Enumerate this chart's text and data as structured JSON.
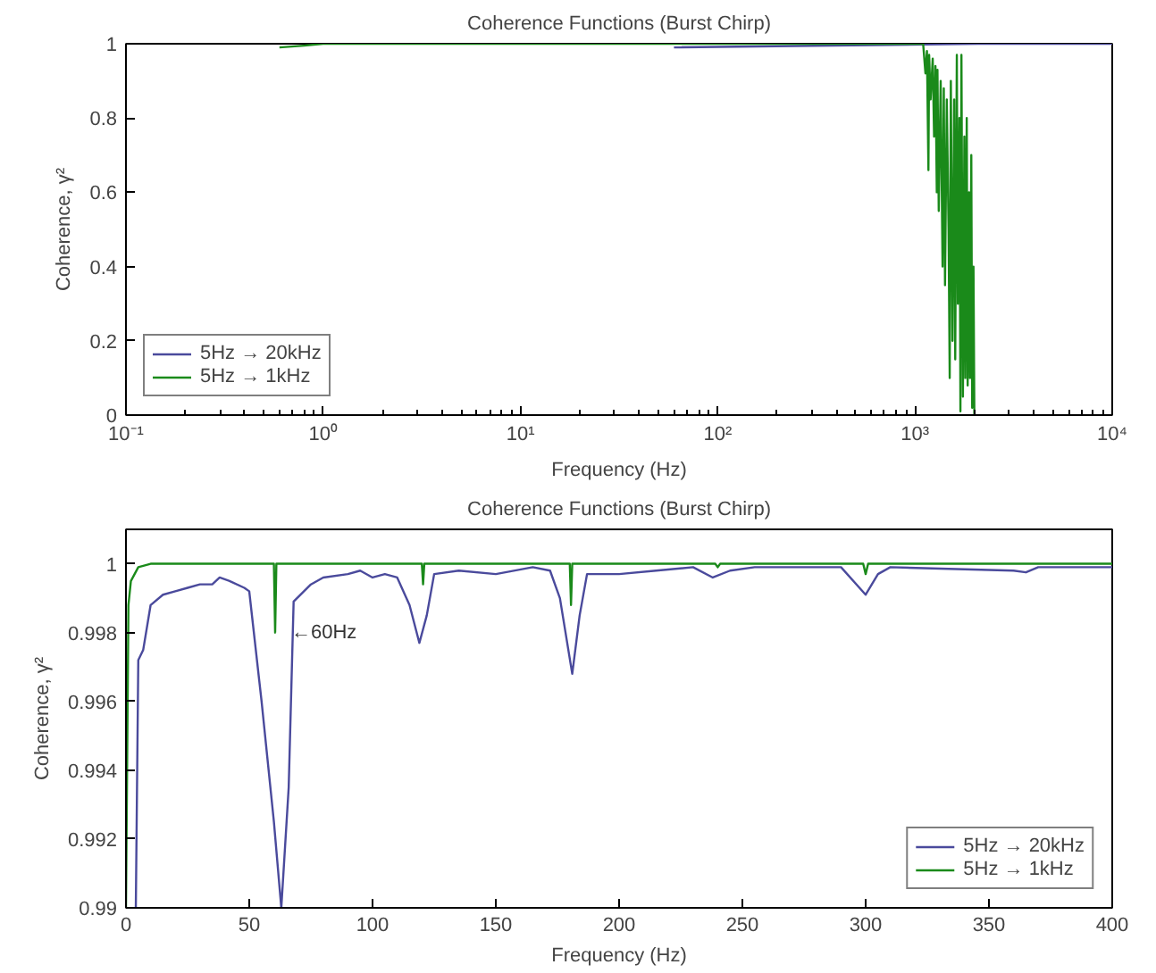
{
  "chart_data": [
    {
      "type": "line",
      "title": "Coherence Functions (Burst Chirp)",
      "xlabel": "Frequency (Hz)",
      "ylabel": "Coherence, γ²",
      "log": "x",
      "grid": false,
      "legend": "bottom left",
      "xlim": [
        0.1,
        10000
      ],
      "xticks": [
        {
          "value": 0.1,
          "label": "10⁻¹"
        },
        {
          "value": 1,
          "label": "10⁰"
        },
        {
          "value": 10,
          "label": "10¹"
        },
        {
          "value": 100,
          "label": "10²"
        },
        {
          "value": 1000,
          "label": "10³"
        },
        {
          "value": 10000,
          "label": "10⁴"
        }
      ],
      "ylim": [
        0,
        1
      ],
      "yticks": [
        0,
        0.2,
        0.4,
        0.6,
        0.8,
        1
      ],
      "series": [
        {
          "name": "5Hz → 20kHz",
          "color": "#4a4a9c",
          "x": [
            60,
            2100,
            10000
          ],
          "values": [
            0.99,
            1,
            1
          ]
        },
        {
          "name": "5Hz → 1kHz",
          "color": "#1a8a1a",
          "x": [
            0.6,
            0.8,
            1,
            10,
            100,
            1000,
            1100,
            1130,
            1150,
            1170,
            1180,
            1200,
            1230,
            1250,
            1270,
            1290,
            1300,
            1320,
            1350,
            1380,
            1400,
            1420,
            1450,
            1480,
            1500,
            1520,
            1550,
            1580,
            1600,
            1630,
            1650,
            1680,
            1700,
            1720,
            1750,
            1780,
            1800,
            1830,
            1850,
            1880,
            1900,
            1930,
            1950,
            1980,
            2000
          ],
          "values": [
            0.99,
            0.995,
            1,
            1,
            1,
            1,
            1,
            0.92,
            0.98,
            0.66,
            0.97,
            0.85,
            0.96,
            0.75,
            0.94,
            0.6,
            0.93,
            0.55,
            0.9,
            0.4,
            0.88,
            0.35,
            0.85,
            0.5,
            0.1,
            0.9,
            0.2,
            0.85,
            0.15,
            0.97,
            0.3,
            0.8,
            0.01,
            0.97,
            0.05,
            0.75,
            0.1,
            0.8,
            0.08,
            0.6,
            0.1,
            0.7,
            0.02,
            0.4,
            0.0
          ]
        }
      ]
    },
    {
      "type": "line",
      "title": "Coherence Functions (Burst Chirp)",
      "xlabel": "Frequency (Hz)",
      "ylabel": "Coherence, γ²",
      "grid": false,
      "legend": "bottom right",
      "xlim": [
        0,
        400
      ],
      "xticks": [
        0,
        50,
        100,
        150,
        200,
        250,
        300,
        350,
        400
      ],
      "ylim": [
        0.99,
        1.001
      ],
      "yticks": [
        0.99,
        0.992,
        0.994,
        0.996,
        0.998,
        1
      ],
      "annotations": [
        {
          "text": "←60Hz",
          "x": 67,
          "y": 0.998
        }
      ],
      "series": [
        {
          "name": "5Hz → 20kHz",
          "color": "#4a4a9c",
          "x": [
            4,
            5,
            7,
            10,
            15,
            20,
            25,
            30,
            35,
            38,
            42,
            48,
            50,
            55,
            60,
            63,
            66,
            68,
            75,
            80,
            90,
            95,
            100,
            105,
            110,
            115,
            119,
            122,
            125,
            135,
            150,
            165,
            172,
            176,
            181,
            184,
            187,
            200,
            215,
            230,
            238,
            245,
            255,
            290,
            300,
            305,
            310,
            360,
            365,
            370,
            400
          ],
          "values": [
            0.99,
            0.9972,
            0.9975,
            0.9988,
            0.9991,
            0.9992,
            0.9993,
            0.9994,
            0.9994,
            0.9996,
            0.9995,
            0.9993,
            0.9992,
            0.996,
            0.9925,
            0.99,
            0.9935,
            0.9989,
            0.9994,
            0.9996,
            0.9997,
            0.9998,
            0.9996,
            0.9997,
            0.9996,
            0.9988,
            0.9977,
            0.9985,
            0.9997,
            0.9998,
            0.9997,
            0.9999,
            0.9998,
            0.999,
            0.9968,
            0.9985,
            0.9997,
            0.9997,
            0.9998,
            0.9999,
            0.9996,
            0.9998,
            0.9999,
            0.9999,
            0.9991,
            0.9997,
            0.9999,
            0.9998,
            0.99975,
            0.9999,
            0.9999
          ]
        },
        {
          "name": "5Hz → 1kHz",
          "color": "#1a8a1a",
          "x": [
            0,
            1,
            2,
            5,
            10,
            60,
            60.5,
            61,
            120,
            120.5,
            121,
            180,
            180.5,
            181,
            239,
            240,
            241,
            299,
            300,
            301,
            400
          ],
          "values": [
            0.99,
            0.9988,
            0.9995,
            0.9999,
            1,
            1,
            0.998,
            1,
            1,
            0.9994,
            1,
            1,
            0.9988,
            1,
            1,
            0.9999,
            1,
            1,
            0.9997,
            1,
            1
          ]
        }
      ]
    }
  ]
}
